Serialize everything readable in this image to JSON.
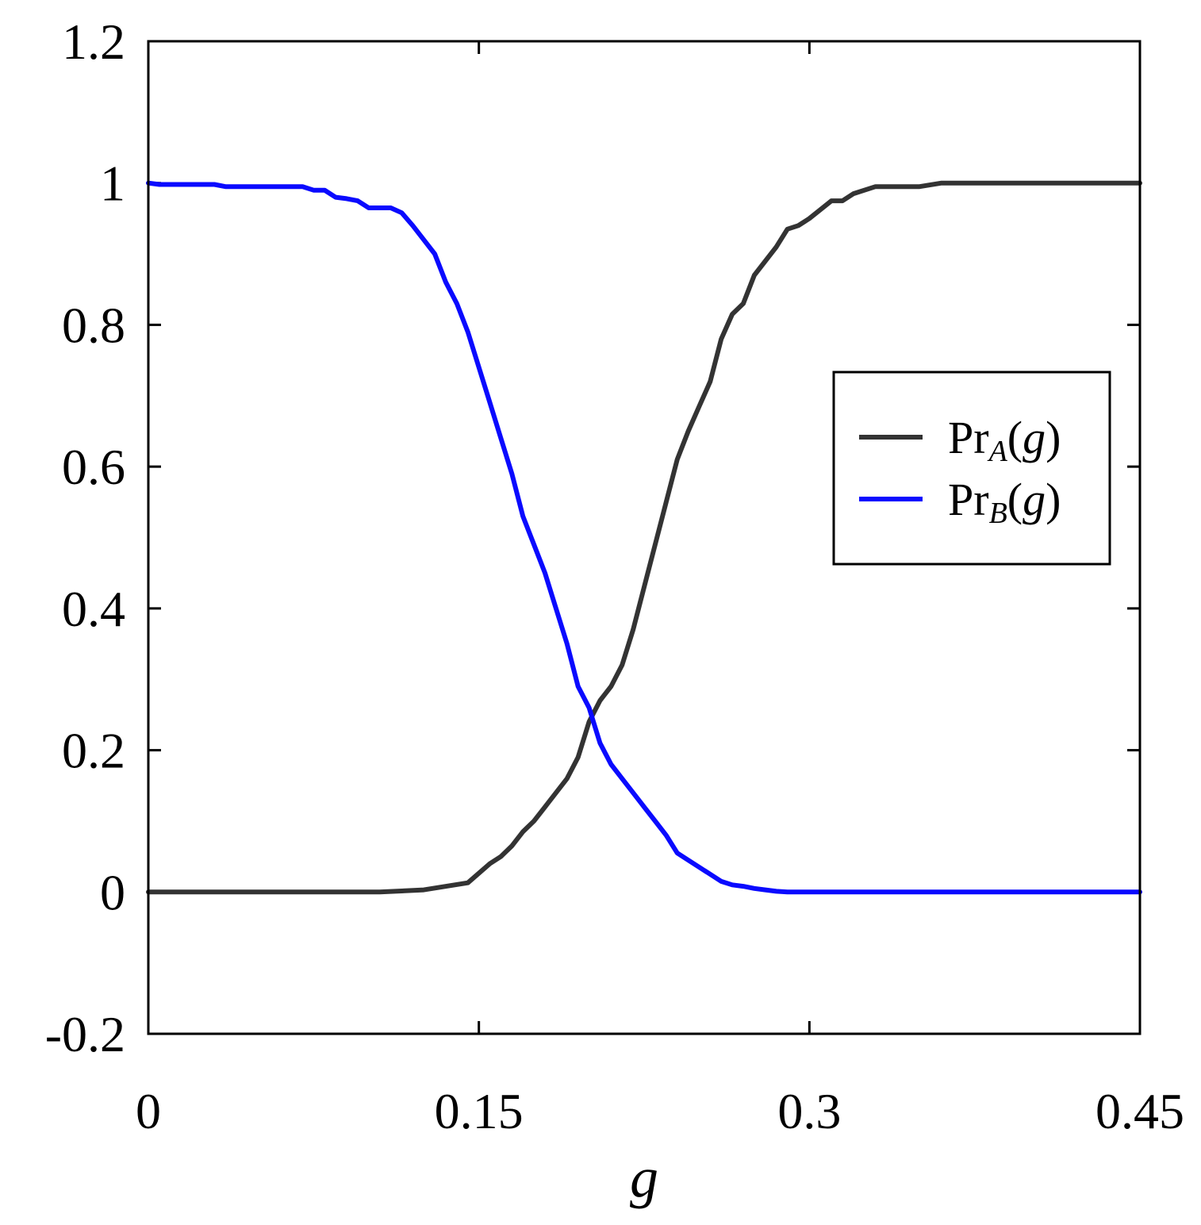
{
  "chart_data": {
    "type": "line",
    "xlabel": "g",
    "ylabel": "",
    "xlim": [
      0,
      0.45
    ],
    "ylim": [
      -0.2,
      1.2
    ],
    "xticks": [
      0,
      0.15,
      0.3,
      0.45
    ],
    "xtick_labels": [
      "0",
      "0.15",
      "0.3",
      "0.45"
    ],
    "yticks": [
      -0.2,
      0,
      0.2,
      0.4,
      0.6,
      0.8,
      1,
      1.2
    ],
    "ytick_labels": [
      "-0.2",
      "0",
      "0.2",
      "0.4",
      "0.6",
      "0.8",
      "1",
      "1.2"
    ],
    "grid": false,
    "legend_position": "right",
    "series": [
      {
        "name": "PrA(g)",
        "legend": {
          "base": "Pr",
          "sub": "A",
          "open": "(",
          "arg": "g",
          "close": ")"
        },
        "color": "#333333",
        "x": [
          0,
          0.035,
          0.07,
          0.105,
          0.125,
          0.145,
          0.155,
          0.16,
          0.165,
          0.17,
          0.175,
          0.18,
          0.185,
          0.19,
          0.195,
          0.2,
          0.205,
          0.21,
          0.215,
          0.22,
          0.225,
          0.23,
          0.235,
          0.24,
          0.245,
          0.25,
          0.255,
          0.26,
          0.265,
          0.27,
          0.275,
          0.28,
          0.285,
          0.29,
          0.295,
          0.3,
          0.31,
          0.315,
          0.32,
          0.33,
          0.35,
          0.36,
          0.37,
          0.4,
          0.45
        ],
        "y": [
          0,
          0,
          0,
          0,
          0.003,
          0.013,
          0.04,
          0.05,
          0.065,
          0.085,
          0.1,
          0.12,
          0.14,
          0.16,
          0.19,
          0.24,
          0.27,
          0.29,
          0.32,
          0.37,
          0.43,
          0.49,
          0.55,
          0.61,
          0.65,
          0.685,
          0.72,
          0.78,
          0.815,
          0.83,
          0.87,
          0.89,
          0.91,
          0.935,
          0.94,
          0.95,
          0.975,
          0.975,
          0.985,
          0.995,
          0.995,
          1,
          1,
          1,
          1
        ]
      },
      {
        "name": "PrB(g)",
        "legend": {
          "base": "Pr",
          "sub": "B",
          "open": "(",
          "arg": "g",
          "close": ")"
        },
        "color": "#0a0aff",
        "x": [
          0,
          0.005,
          0.03,
          0.035,
          0.07,
          0.075,
          0.08,
          0.085,
          0.09,
          0.095,
          0.1,
          0.11,
          0.115,
          0.12,
          0.125,
          0.13,
          0.135,
          0.14,
          0.145,
          0.15,
          0.155,
          0.16,
          0.165,
          0.17,
          0.175,
          0.18,
          0.185,
          0.19,
          0.195,
          0.2,
          0.205,
          0.21,
          0.215,
          0.22,
          0.225,
          0.23,
          0.235,
          0.24,
          0.245,
          0.25,
          0.255,
          0.26,
          0.265,
          0.27,
          0.275,
          0.28,
          0.285,
          0.29,
          0.3,
          0.35,
          0.4,
          0.45
        ],
        "y": [
          1,
          0.998,
          0.998,
          0.995,
          0.995,
          0.99,
          0.99,
          0.98,
          0.978,
          0.975,
          0.965,
          0.965,
          0.958,
          0.94,
          0.92,
          0.9,
          0.86,
          0.83,
          0.79,
          0.74,
          0.69,
          0.64,
          0.59,
          0.53,
          0.49,
          0.45,
          0.4,
          0.35,
          0.29,
          0.26,
          0.21,
          0.18,
          0.16,
          0.14,
          0.12,
          0.1,
          0.08,
          0.055,
          0.045,
          0.035,
          0.025,
          0.015,
          0.01,
          0.008,
          0.005,
          0.003,
          0.001,
          0,
          0,
          0,
          0,
          0
        ]
      }
    ]
  }
}
